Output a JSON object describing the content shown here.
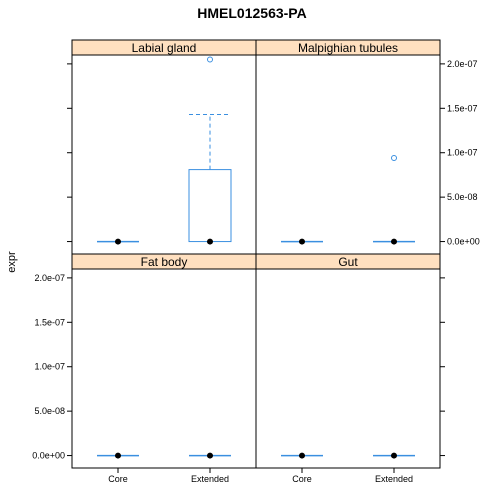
{
  "chart_data": {
    "type": "box",
    "title": "HMEL012563-PA",
    "ylabel": "expr",
    "xlabel": "",
    "categories": [
      "Core",
      "Extended"
    ],
    "y_ticks": [
      "0.0e+00",
      "5.0e-08",
      "1.0e-07",
      "1.5e-07",
      "2.0e-07"
    ],
    "y_tick_values": [
      0,
      5e-08,
      1e-07,
      1.5e-07,
      2e-07
    ],
    "ylim": [
      -1.4e-08,
      2.1e-07
    ],
    "colors": {
      "box": "#3a8fe0",
      "median": "#000000",
      "strip": "#ffe0c0",
      "outlier": "#3a8fe0"
    },
    "panels": [
      {
        "name": "Labial gland",
        "boxes": [
          {
            "category": "Core",
            "q1": 0,
            "median": 0,
            "q3": 0,
            "whisker_low": 0,
            "whisker_high": 0,
            "outliers": []
          },
          {
            "category": "Extended",
            "q1": 0,
            "median": 0,
            "q3": 8.1e-08,
            "whisker_low": 0,
            "whisker_high": 1.43e-07,
            "outliers": [
              2.05e-07
            ]
          }
        ]
      },
      {
        "name": "Malpighian tubules",
        "boxes": [
          {
            "category": "Core",
            "q1": 0,
            "median": 0,
            "q3": 0,
            "whisker_low": 0,
            "whisker_high": 0,
            "outliers": []
          },
          {
            "category": "Extended",
            "q1": 0,
            "median": 0,
            "q3": 0,
            "whisker_low": 0,
            "whisker_high": 0,
            "outliers": [
              9.4e-08
            ]
          }
        ]
      },
      {
        "name": "Fat body",
        "boxes": [
          {
            "category": "Core",
            "q1": 0,
            "median": 0,
            "q3": 0,
            "whisker_low": 0,
            "whisker_high": 0,
            "outliers": []
          },
          {
            "category": "Extended",
            "q1": 0,
            "median": 0,
            "q3": 0,
            "whisker_low": 0,
            "whisker_high": 0,
            "outliers": []
          }
        ]
      },
      {
        "name": "Gut",
        "boxes": [
          {
            "category": "Core",
            "q1": 0,
            "median": 0,
            "q3": 0,
            "whisker_low": 0,
            "whisker_high": 0,
            "outliers": []
          },
          {
            "category": "Extended",
            "q1": 0,
            "median": 0,
            "q3": 0,
            "whisker_low": 0,
            "whisker_high": 0,
            "outliers": []
          }
        ]
      }
    ]
  }
}
